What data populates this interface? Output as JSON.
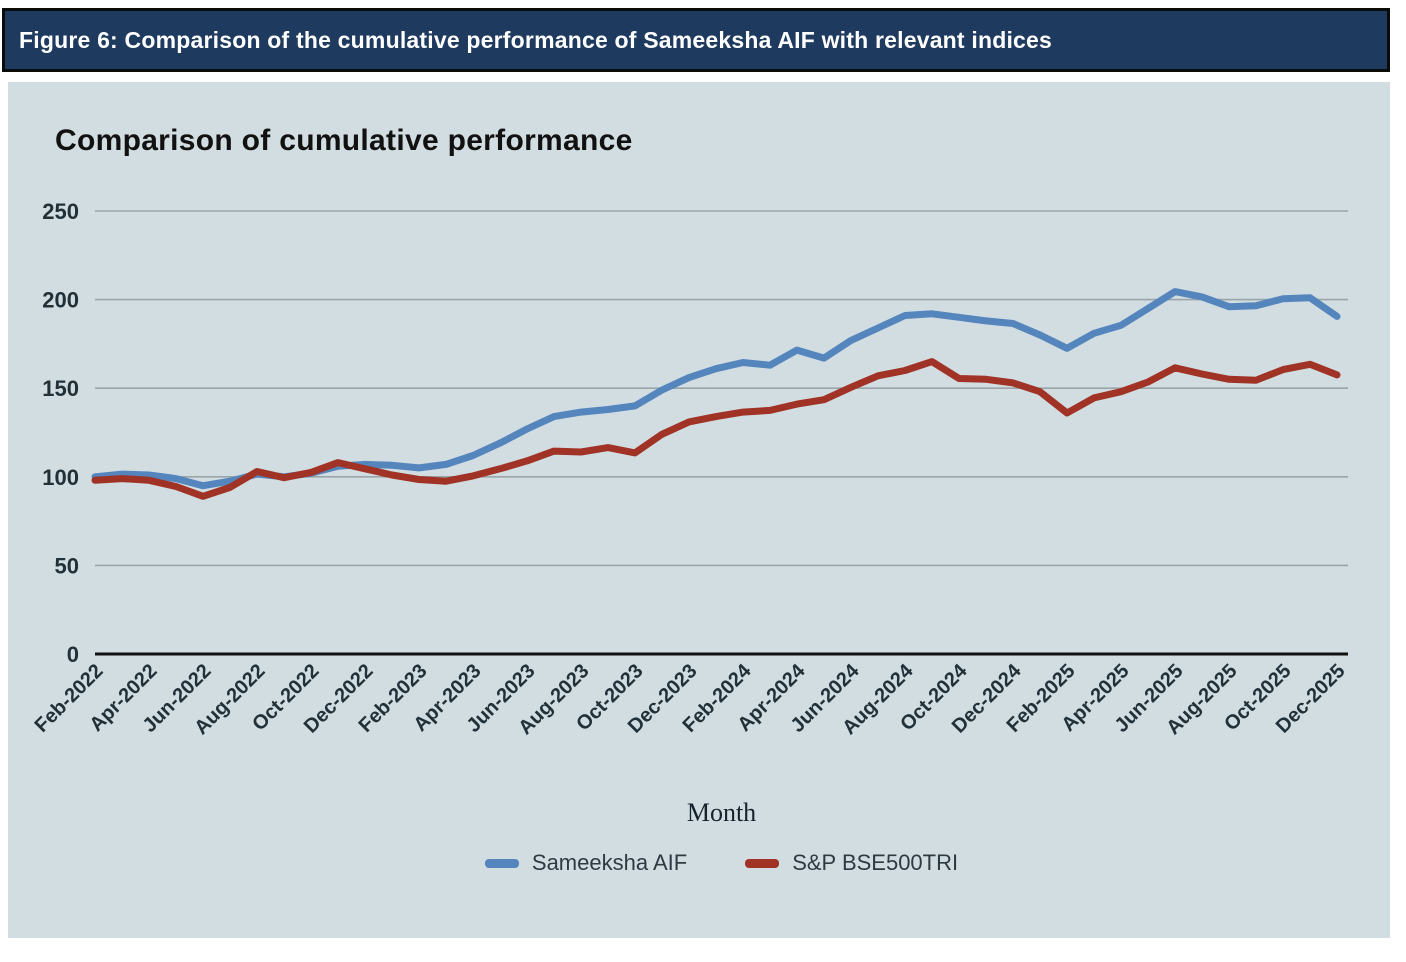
{
  "figure_caption": "Figure 6: Comparison of the cumulative performance of Sameeksha AIF with relevant indices",
  "chart_data": {
    "type": "line",
    "title": "Comparison of cumulative performance",
    "xlabel": "Month",
    "ylabel": "",
    "ylim": [
      0,
      250
    ],
    "y_ticks": [
      0,
      50,
      100,
      150,
      200,
      250
    ],
    "grid": true,
    "legend_position": "bottom",
    "x_tick_labels": [
      "Feb-2022",
      "Apr-2022",
      "Jun-2022",
      "Aug-2022",
      "Oct-2022",
      "Dec-2022",
      "Feb-2023",
      "Apr-2023",
      "Jun-2023",
      "Aug-2023",
      "Oct-2023",
      "Dec-2023",
      "Feb-2024",
      "Apr-2024",
      "Jun-2024",
      "Aug-2024",
      "Oct-2024",
      "Dec-2024",
      "Feb-2025",
      "Apr-2025",
      "Jun-2025",
      "Aug-2025",
      "Oct-2025",
      "Dec-2025"
    ],
    "categories": [
      "Feb-2022",
      "Mar-2022",
      "Apr-2022",
      "May-2022",
      "Jun-2022",
      "Jul-2022",
      "Aug-2022",
      "Sep-2022",
      "Oct-2022",
      "Nov-2022",
      "Dec-2022",
      "Jan-2023",
      "Feb-2023",
      "Mar-2023",
      "Apr-2023",
      "May-2023",
      "Jun-2023",
      "Jul-2023",
      "Aug-2023",
      "Sep-2023",
      "Oct-2023",
      "Nov-2023",
      "Dec-2023",
      "Jan-2024",
      "Feb-2024",
      "Mar-2024",
      "Apr-2024",
      "May-2024",
      "Jun-2024",
      "Jul-2024",
      "Aug-2024",
      "Sep-2024",
      "Oct-2024",
      "Nov-2024",
      "Dec-2024",
      "Jan-2025",
      "Feb-2025",
      "Mar-2025",
      "Apr-2025",
      "May-2025",
      "Jun-2025",
      "Jul-2025",
      "Aug-2025",
      "Sep-2025",
      "Oct-2025",
      "Nov-2025",
      "Dec-2025"
    ],
    "series": [
      {
        "name": "Sameeksha AIF",
        "color": "#5585bd",
        "values": [
          100,
          101.5,
          101,
          99,
          95,
          97.5,
          101.5,
          100,
          102,
          106,
          107,
          106.5,
          105,
          107,
          112,
          119,
          127,
          134,
          136.5,
          138,
          140,
          149,
          156,
          161,
          164.5,
          163,
          171.5,
          167,
          177,
          184,
          191,
          192,
          190,
          188,
          186.5,
          180,
          172.5,
          181,
          185.5,
          195,
          204.5,
          201.5,
          196,
          196.5,
          200.5,
          201,
          190.5
        ]
      },
      {
        "name": "S&P BSE500TRI",
        "color": "#a03226",
        "values": [
          98,
          99,
          98,
          94.5,
          89,
          94,
          103,
          99.5,
          102.5,
          108,
          104.5,
          101,
          98.5,
          97.5,
          100.5,
          104.5,
          109,
          114.5,
          114,
          116.5,
          113.5,
          124,
          131,
          134,
          136.5,
          137.5,
          141,
          143.5,
          150.5,
          157,
          160,
          165,
          155.5,
          155,
          153,
          148,
          136,
          144.5,
          148,
          153.5,
          161.5,
          158,
          155,
          154.5,
          160.5,
          163.5,
          157.5
        ]
      }
    ]
  },
  "colors": {
    "header_bg": "#1e3a5f",
    "header_text": "#ffffff",
    "panel_bg": "#d1dde1",
    "grid_line": "#9aa5a8",
    "axis_line": "#111111",
    "tick_text": "#223038",
    "series_blue": "#5585bd",
    "series_red": "#a03226"
  }
}
